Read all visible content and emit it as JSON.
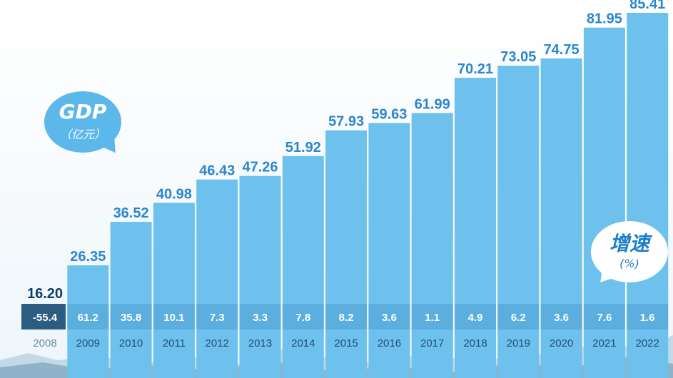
{
  "chart_data": {
    "type": "bar",
    "categories": [
      "2008",
      "2009",
      "2010",
      "2011",
      "2012",
      "2013",
      "2014",
      "2015",
      "2016",
      "2017",
      "2018",
      "2019",
      "2020",
      "2021",
      "2022"
    ],
    "values": [
      16.2,
      26.35,
      36.52,
      40.98,
      46.43,
      47.26,
      51.92,
      57.93,
      59.63,
      61.99,
      70.21,
      73.05,
      74.75,
      81.95,
      85.41
    ],
    "value_labels": [
      "16.20",
      "26.35",
      "36.52",
      "40.98",
      "46.43",
      "47.26",
      "51.92",
      "57.93",
      "59.63",
      "61.99",
      "70.21",
      "73.05",
      "74.75",
      "81.95",
      "85.41"
    ],
    "growth_labels": [
      "-55.4",
      "61.2",
      "35.8",
      "10.1",
      "7.3",
      "3.3",
      "7.8",
      "8.2",
      "3.6",
      "1.1",
      "4.9",
      "6.2",
      "3.6",
      "7.6",
      "1.6"
    ],
    "ylim": [
      0,
      85.41
    ],
    "gdp_title": "GDP",
    "gdp_unit": "（亿元）",
    "growth_title": "增速",
    "growth_unit": "(%)"
  },
  "colors": {
    "bar": "#6ec1ec",
    "bar_bottom": "#8ed0f2",
    "value_label": "#2a86cf",
    "first_label": "#0f3f66",
    "growth_band": "#4f9fd6",
    "first_year_band": "#2c5d80",
    "mountain_dark": "#8fb3c9",
    "mountain_light": "#c3d9e6"
  }
}
